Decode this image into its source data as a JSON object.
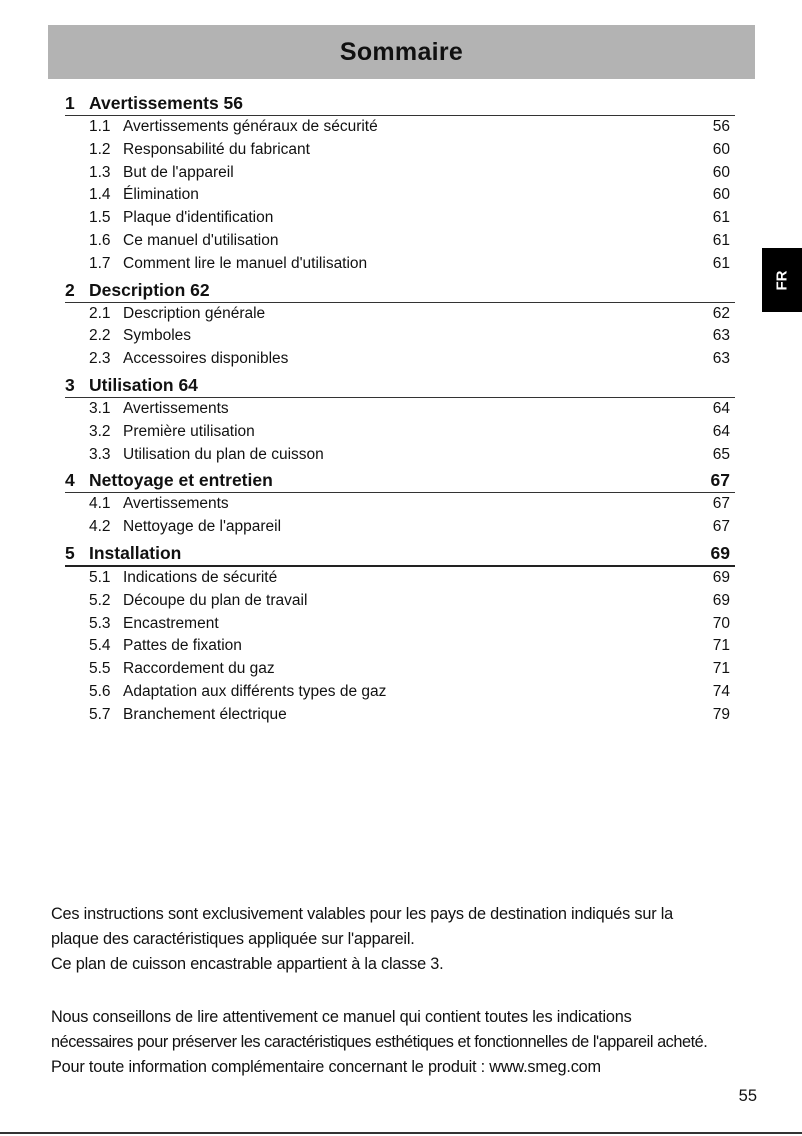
{
  "header": {
    "title": "Sommaire"
  },
  "side_tab": {
    "label": "FR"
  },
  "toc": [
    {
      "num": "1",
      "title": "Avertissements 56",
      "page": "",
      "items": [
        {
          "num": "1.1",
          "title": "Avertissements généraux de sécurité",
          "page": "56"
        },
        {
          "num": "1.2",
          "title": "Responsabilité du fabricant",
          "page": "60"
        },
        {
          "num": "1.3",
          "title": "But de l'appareil",
          "page": "60"
        },
        {
          "num": "1.4",
          "title": "Élimination",
          "page": "60"
        },
        {
          "num": "1.5",
          "title": "Plaque d'identification",
          "page": "61"
        },
        {
          "num": "1.6",
          "title": "Ce manuel d'utilisation",
          "page": "61"
        },
        {
          "num": "1.7",
          "title": "Comment lire le manuel d'utilisation",
          "page": "61"
        }
      ]
    },
    {
      "num": "2",
      "title": "Description 62",
      "page": "",
      "items": [
        {
          "num": "2.1",
          "title": "Description générale",
          "page": "62"
        },
        {
          "num": "2.2",
          "title": "Symboles",
          "page": "63"
        },
        {
          "num": "2.3",
          "title": "Accessoires disponibles",
          "page": "63"
        }
      ]
    },
    {
      "num": "3",
      "title": "Utilisation 64",
      "page": "",
      "items": [
        {
          "num": "3.1",
          "title": "Avertissements",
          "page": "64"
        },
        {
          "num": "3.2",
          "title": "Première utilisation",
          "page": "64"
        },
        {
          "num": "3.3",
          "title": "Utilisation du plan de cuisson",
          "page": "65"
        }
      ]
    },
    {
      "num": "4",
      "title": "Nettoyage et entretien",
      "page": "67",
      "items": [
        {
          "num": "4.1",
          "title": "Avertissements",
          "page": "67"
        },
        {
          "num": "4.2",
          "title": "Nettoyage de l'appareil",
          "page": "67"
        }
      ]
    },
    {
      "num": "5",
      "title": "Installation",
      "page": "69",
      "items": [
        {
          "num": "5.1",
          "title": "Indications de sécurité",
          "page": "69"
        },
        {
          "num": "5.2",
          "title": "Découpe du plan de travail",
          "page": "69"
        },
        {
          "num": "5.3",
          "title": "Encastrement",
          "page": "70"
        },
        {
          "num": "5.4",
          "title": "Pattes de fixation",
          "page": "71"
        },
        {
          "num": "5.5",
          "title": "Raccordement du gaz",
          "page": "71"
        },
        {
          "num": "5.6",
          "title": "Adaptation aux différents types de gaz",
          "page": "74"
        },
        {
          "num": "5.7",
          "title": "Branchement électrique",
          "page": "79"
        }
      ]
    }
  ],
  "intro": {
    "p1_line1": "Ces instructions sont exclusivement valables pour les pays de destination indiqués sur la",
    "p1_line2": "plaque des caractéristiques appliquée sur l'appareil.",
    "p2": "Ce plan de cuisson encastrable appartient à la classe 3.",
    "p3_line1": "Nous conseillons de lire attentivement ce manuel qui contient toutes les indications",
    "p3_line2": "nécessaires pour préserver les caractéristiques esthétiques et fonctionnelles de l'appareil acheté.",
    "p4": "Pour toute information complémentaire concernant le produit : www.smeg.com"
  },
  "footer": {
    "page_number": "55"
  }
}
